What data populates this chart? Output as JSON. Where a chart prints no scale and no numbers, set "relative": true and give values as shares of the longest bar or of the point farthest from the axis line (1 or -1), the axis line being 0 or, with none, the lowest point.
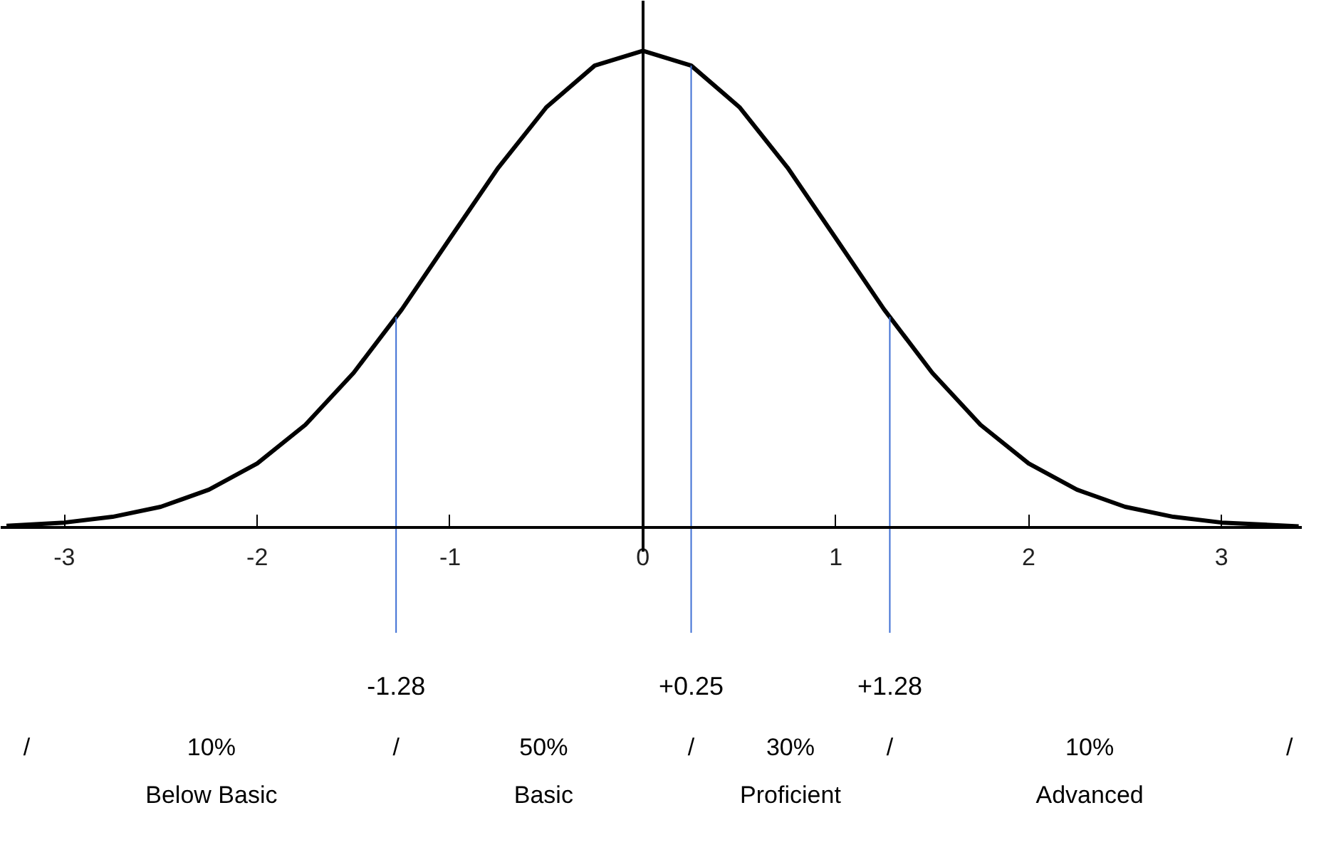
{
  "chart_data": {
    "type": "line",
    "relative": true,
    "tick_labels": "x",
    "marker": "none",
    "line_style": "solid",
    "x": [
      -3.3,
      -3.0,
      -2.75,
      -2.5,
      -2.25,
      -2.0,
      -1.75,
      -1.5,
      -1.25,
      -1.0,
      -0.75,
      -0.5,
      -0.25,
      0,
      0.25,
      0.5,
      0.75,
      1.0,
      1.25,
      1.5,
      1.75,
      2.0,
      2.25,
      2.5,
      2.75,
      3.0,
      3.4
    ],
    "series": [
      {
        "color": "#000000",
        "values": [
          0.004,
          0.011,
          0.023,
          0.044,
          0.08,
          0.135,
          0.216,
          0.325,
          0.458,
          0.607,
          0.755,
          0.882,
          0.969,
          1,
          0.969,
          0.882,
          0.755,
          0.607,
          0.458,
          0.325,
          0.216,
          0.135,
          0.08,
          0.044,
          0.023,
          0.011,
          0.003
        ]
      }
    ],
    "xlim": [
      -3.33,
      3.42
    ],
    "xticks": [
      -3,
      -2,
      -1,
      0,
      1,
      2,
      3
    ],
    "ref_lines": [
      {
        "axis": "x",
        "value": -1.28,
        "label": "-1.28",
        "color": "#3f6fd4"
      },
      {
        "axis": "x",
        "value": 0.25,
        "label": "+0.25",
        "color": "#3f6fd4"
      },
      {
        "axis": "x",
        "value": 1.28,
        "label": "+1.28",
        "color": "#3f6fd4"
      }
    ],
    "annotations": [
      "/",
      "10%",
      "/",
      "50%",
      "/",
      "30%",
      "/",
      "10%",
      "/",
      "Below Basic",
      "Basic",
      "Proficient",
      "Advanced"
    ]
  }
}
